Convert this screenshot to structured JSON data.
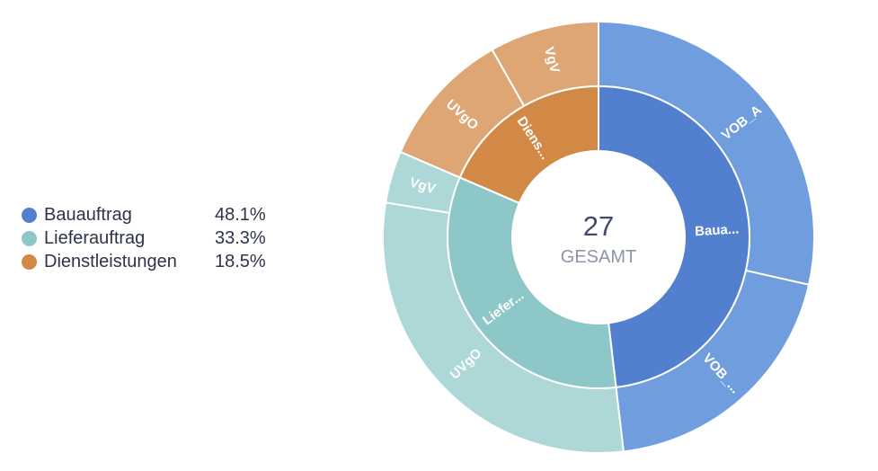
{
  "chart_data": {
    "type": "sunburst",
    "center": {
      "total": "27",
      "label": "GESAMT"
    },
    "inner_ring": [
      {
        "name": "Bauauftrag",
        "label": "Baua...",
        "percent": "48.1%",
        "value": 48.1,
        "color": "#537fcf"
      },
      {
        "name": "Lieferauftrag",
        "label": "Liefer...",
        "percent": "33.3%",
        "value": 33.3,
        "color": "#8ec7c8"
      },
      {
        "name": "Dienstleistungen",
        "label": "Diens...",
        "percent": "18.5%",
        "value": 18.5,
        "color": "#d28946"
      }
    ],
    "outer_ring": [
      {
        "parent": "Bauauftrag",
        "label": "VOB_A",
        "value": 28.5,
        "color": "#6f9ddd"
      },
      {
        "parent": "Bauauftrag",
        "label": "VOB_...",
        "value": 19.6,
        "color": "#6f9ddd"
      },
      {
        "parent": "Lieferauftrag",
        "label": "UVgO",
        "value": 29.4,
        "color": "#aed7d7"
      },
      {
        "parent": "Lieferauftrag",
        "label": "VgV",
        "value": 3.9,
        "color": "#aed7d7"
      },
      {
        "parent": "Dienstleistungen",
        "label": "UVgO",
        "value": 10.3,
        "color": "#dea674"
      },
      {
        "parent": "Dienstleistungen",
        "label": "VgV",
        "value": 8.2,
        "color": "#dea674"
      }
    ]
  }
}
